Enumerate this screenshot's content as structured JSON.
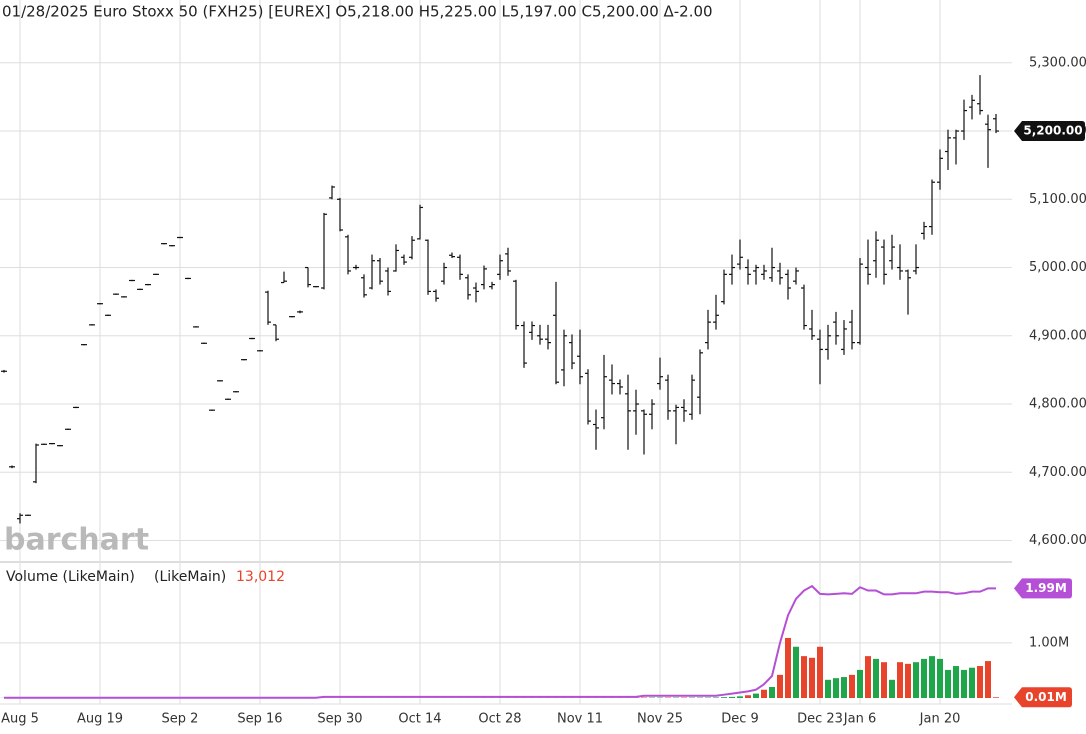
{
  "chart_data": [
    {
      "type": "ohlc",
      "title": "01/28/2025 Euro Stoxx 50 (FXH25) [EUREX] O5,218.00 H5,225.00 L5,197.00 C5,200.00 Δ-2.00",
      "watermark": "barchart",
      "categories": [
        null,
        null,
        "Aug 5",
        null,
        null,
        null,
        null,
        null,
        null,
        null,
        null,
        null,
        "Aug 19",
        null,
        null,
        null,
        null,
        null,
        null,
        null,
        null,
        null,
        "Sep 2",
        null,
        null,
        null,
        null,
        null,
        null,
        null,
        null,
        null,
        "Sep 16",
        null,
        null,
        null,
        null,
        null,
        null,
        null,
        null,
        null,
        "Sep 30",
        null,
        null,
        null,
        null,
        null,
        null,
        null,
        null,
        null,
        "Oct 14",
        null,
        null,
        null,
        null,
        null,
        null,
        null,
        null,
        null,
        "Oct 28",
        null,
        null,
        null,
        null,
        null,
        null,
        null,
        null,
        null,
        "Nov 11",
        null,
        null,
        null,
        null,
        null,
        null,
        null,
        null,
        null,
        "Nov 25",
        null,
        null,
        null,
        null,
        null,
        null,
        null,
        null,
        null,
        "Dec 9",
        null,
        null,
        null,
        null,
        null,
        null,
        null,
        null,
        null,
        "Dec 23",
        null,
        null,
        null,
        null,
        "Jan 6",
        null,
        null,
        null,
        null,
        null,
        null,
        null,
        null,
        null,
        "Jan 20",
        null,
        null,
        null,
        null,
        null,
        null,
        null
      ],
      "open": [
        4848,
        4708,
        4632,
        4637,
        4686,
        4741,
        4742,
        4739,
        4763,
        4795,
        4887,
        4916,
        4947,
        4930,
        4961,
        4957,
        4981,
        4968,
        4975,
        4990,
        5035,
        5032,
        5044,
        4984,
        4913,
        4889,
        4791,
        4834,
        4807,
        4818,
        4865,
        4896,
        4878,
        4964,
        4916,
        4978,
        4928,
        4935,
        5000,
        4972,
        4970,
        5102,
        5100,
        5045,
        5000,
        4985,
        4970,
        5010,
        4995,
        4995,
        5015,
        5015,
        5042,
        5040,
        4965,
        4980,
        5018,
        5015,
        4985,
        4970,
        4975,
        4972,
        4990,
        5020,
        4980,
        4915,
        4905,
        4900,
        4895,
        4930,
        4850,
        4890,
        4870,
        4845,
        4770,
        4780,
        4835,
        4830,
        4815,
        4790,
        4790,
        4785,
        4830,
        4835,
        4790,
        4795,
        4785,
        4810,
        4890,
        4920,
        4950,
        4990,
        5005,
        5000,
        4995,
        4990,
        4985,
        4995,
        4990,
        4980,
        4970,
        4910,
        4895,
        4880,
        4920,
        4880,
        4920,
        4890,
        5000,
        5010,
        5030,
        5010,
        5000,
        4995,
        4995,
        5050,
        5060,
        5125,
        5170,
        5190,
        5200,
        5235,
        5240,
        5210,
        5218
      ],
      "high": [
        4850,
        4710,
        4640,
        4638,
        4742,
        4742,
        4743,
        4740,
        4764,
        4796,
        4888,
        4917,
        4948,
        4931,
        4962,
        4958,
        4982,
        4969,
        4976,
        4991,
        5036,
        5033,
        5045,
        4985,
        4914,
        4890,
        4792,
        4835,
        4808,
        4819,
        4866,
        4897,
        4879,
        4966,
        4916,
        4994,
        4929,
        4937,
        5000,
        4973,
        5080,
        5120,
        5102,
        5048,
        5004,
        4990,
        5019,
        5014,
        5000,
        5034,
        5019,
        5046,
        5092,
        5041,
        4968,
        5007,
        5022,
        5019,
        4990,
        4978,
        5003,
        4979,
        5019,
        5029,
        4982,
        4921,
        4921,
        4916,
        4916,
        4979,
        4909,
        4902,
        4909,
        4851,
        4792,
        4872,
        4858,
        4836,
        4843,
        4821,
        4792,
        4807,
        4868,
        4843,
        4799,
        4807,
        4843,
        4880,
        4938,
        4960,
        4997,
        5019,
        5041,
        5012,
        5004,
        5004,
        5029,
        5007,
        4997,
        5000,
        4975,
        4938,
        4909,
        4916,
        4935,
        4923,
        4938,
        5014,
        5041,
        5053,
        5041,
        5048,
        5034,
        4997,
        5034,
        5067,
        5129,
        5173,
        5202,
        5202,
        5246,
        5253,
        5282,
        5224,
        5225
      ],
      "low": [
        4846,
        4706,
        4625,
        4636,
        4684,
        4740,
        4741,
        4738,
        4762,
        4794,
        4886,
        4915,
        4946,
        4929,
        4960,
        4956,
        4980,
        4967,
        4974,
        4989,
        5034,
        5031,
        5043,
        4983,
        4912,
        4888,
        4790,
        4833,
        4806,
        4817,
        4864,
        4895,
        4877,
        4916,
        4892,
        4978,
        4927,
        4933,
        4971,
        4971,
        4968,
        5100,
        5053,
        4990,
        4997,
        4956,
        4968,
        4975,
        4959,
        4994,
        5004,
        5012,
        5041,
        4960,
        4950,
        4975,
        5014,
        4982,
        4953,
        4949,
        4968,
        4968,
        4982,
        4988,
        4909,
        4853,
        4894,
        4887,
        4880,
        4829,
        4826,
        4851,
        4829,
        4770,
        4733,
        4763,
        4814,
        4814,
        4733,
        4755,
        4726,
        4763,
        4821,
        4777,
        4741,
        4774,
        4777,
        4785,
        4880,
        4909,
        4946,
        4975,
        4997,
        4975,
        4975,
        4982,
        4979,
        4975,
        4953,
        4975,
        4909,
        4894,
        4829,
        4865,
        4887,
        4872,
        4880,
        4887,
        4975,
        4985,
        4975,
        4997,
        4982,
        4931,
        4990,
        5041,
        5048,
        5114,
        5143,
        5151,
        5187,
        5217,
        5224,
        5146,
        5197
      ],
      "close": [
        4848,
        4708,
        4637,
        4637,
        4740,
        4741,
        4742,
        4739,
        4763,
        4795,
        4887,
        4916,
        4947,
        4930,
        4961,
        4957,
        4981,
        4968,
        4975,
        4990,
        5035,
        5032,
        5044,
        4984,
        4913,
        4889,
        4791,
        4834,
        4807,
        4818,
        4865,
        4896,
        4878,
        4920,
        4895,
        4980,
        4928,
        4935,
        4975,
        4972,
        5078,
        5118,
        5055,
        4995,
        5000,
        4960,
        5010,
        4980,
        4965,
        5025,
        5008,
        5040,
        5088,
        4965,
        4955,
        5000,
        5016,
        4990,
        4960,
        4965,
        4998,
        4975,
        5010,
        4995,
        4915,
        4860,
        4915,
        4895,
        4890,
        4832,
        4900,
        4860,
        4840,
        4775,
        4765,
        4840,
        4830,
        4825,
        4790,
        4800,
        4785,
        4800,
        4840,
        4790,
        4795,
        4790,
        4835,
        4875,
        4920,
        4930,
        4990,
        5000,
        5015,
        4990,
        5000,
        4995,
        5000,
        4985,
        4970,
        4995,
        4915,
        4900,
        4880,
        4900,
        4900,
        4910,
        4890,
        5005,
        4990,
        5040,
        4990,
        5030,
        4995,
        4985,
        5000,
        5060,
        5125,
        5160,
        5190,
        5200,
        5230,
        5245,
        5230,
        5202,
        5200
      ],
      "color": "#111111",
      "ylim": [
        4570,
        5392
      ],
      "yticks": [
        {
          "value": 4600,
          "label": "4,600.00"
        },
        {
          "value": 4700,
          "label": "4,700.00"
        },
        {
          "value": 4800,
          "label": "4,800.00"
        },
        {
          "value": 4900,
          "label": "4,900.00"
        },
        {
          "value": 5000,
          "label": "5,000.00"
        },
        {
          "value": 5100,
          "label": "5,100.00"
        },
        {
          "value": 5200,
          "label": "5,200.00"
        },
        {
          "value": 5300,
          "label": "5,300.00"
        }
      ],
      "grid": true,
      "last_label": "5,200.00"
    },
    {
      "type": "bar",
      "title": "Volume (LikeMain)",
      "series": [
        {
          "name": "(LikeMain)",
          "up_color": "#1fa64a",
          "down_color": "#e8432b",
          "values": [
            3000,
            3000,
            3000,
            3000,
            3000,
            3000,
            3000,
            3000,
            3000,
            3000,
            3000,
            3000,
            3000,
            3000,
            3000,
            3000,
            3000,
            3000,
            3000,
            3000,
            3000,
            3000,
            3000,
            3000,
            3000,
            3000,
            3000,
            3000,
            3000,
            3000,
            3000,
            3000,
            3000,
            3000,
            3000,
            3000,
            3000,
            3000,
            3000,
            3000,
            3000,
            3000,
            3000,
            3000,
            3000,
            3000,
            3000,
            3000,
            3000,
            3000,
            3000,
            3000,
            3000,
            3000,
            3000,
            3000,
            3000,
            3000,
            3000,
            3000,
            5000,
            5000,
            5000,
            5000,
            5000,
            5000,
            5000,
            5000,
            5000,
            5000,
            5000,
            5000,
            5000,
            5000,
            5000,
            5000,
            5000,
            5000,
            5000,
            5000,
            8000,
            8000,
            8000,
            8000,
            8000,
            8000,
            8000,
            8000,
            8000,
            10000,
            15000,
            20000,
            30000,
            50000,
            80000,
            150000,
            200000,
            420000,
            1090000,
            930000,
            760000,
            730000,
            930000,
            330000,
            360000,
            380000,
            420000,
            510000,
            760000,
            710000,
            650000,
            330000,
            650000,
            620000,
            650000,
            710000,
            760000,
            710000,
            510000,
            580000,
            510000,
            550000,
            580000,
            670000,
            13012
          ],
          "last_label": "13,012",
          "axis_label": "0.01M"
        },
        {
          "type": "line",
          "color": "#b44fd6",
          "values": [
            5000,
            5000,
            5000,
            5000,
            5000,
            5000,
            5000,
            5000,
            5000,
            5000,
            5000,
            5000,
            5000,
            5000,
            5000,
            5000,
            5000,
            5000,
            5000,
            5000,
            5000,
            5000,
            5000,
            5000,
            5000,
            5000,
            5000,
            5000,
            5000,
            5000,
            5000,
            5000,
            5000,
            5000,
            5000,
            5000,
            5000,
            5000,
            5000,
            5000,
            20000,
            20000,
            20000,
            20000,
            20000,
            20000,
            20000,
            20000,
            20000,
            20000,
            20000,
            20000,
            20000,
            20000,
            20000,
            20000,
            20000,
            20000,
            20000,
            20000,
            20000,
            20000,
            20000,
            20000,
            20000,
            20000,
            20000,
            20000,
            20000,
            20000,
            20000,
            20000,
            20000,
            20000,
            20000,
            20000,
            20000,
            20000,
            20000,
            20000,
            40000,
            40000,
            40000,
            40000,
            40000,
            40000,
            40000,
            40000,
            40000,
            40000,
            60000,
            80000,
            100000,
            120000,
            150000,
            250000,
            400000,
            1000000,
            1500000,
            1800000,
            1950000,
            2030000,
            1890000,
            1880000,
            1890000,
            1900000,
            1890000,
            2010000,
            1950000,
            1950000,
            1880000,
            1880000,
            1900000,
            1900000,
            1900000,
            1930000,
            1930000,
            1920000,
            1920000,
            1890000,
            1900000,
            1930000,
            1930000,
            1990000,
            1990000
          ],
          "axis_label": "1.99M"
        }
      ],
      "ylim": [
        0,
        2450000
      ],
      "yticks": [
        {
          "value": 1000000,
          "label": "1.00M"
        }
      ],
      "grid": true
    }
  ]
}
